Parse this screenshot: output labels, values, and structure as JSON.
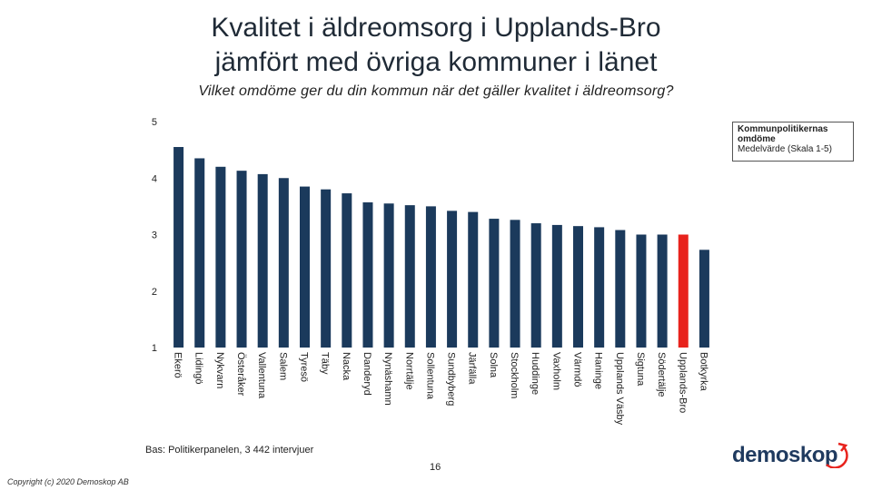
{
  "title": {
    "line1": "Kvalitet i äldreomsorg i Upplands-Bro",
    "line2": "jämfört med övriga kommuner i länet"
  },
  "subtitle": "Vilket omdöme ger du din kommun när det gäller kvalitet i äldreomsorg?",
  "legend": {
    "line1": "Kommunpolitikernas",
    "line2": "omdöme",
    "line3": "Medelvärde (Skala 1-5)"
  },
  "footnote": "Bas: Politikerpanelen, 3 442 intervjuer",
  "page_number": "16",
  "copyright": "Copyright (c) 2020 Demoskop AB",
  "logo_text": "demoskop",
  "colors": {
    "bar": "#1b3a5c",
    "highlight": "#e8231d",
    "logo": "#1f3a5f",
    "logo_arc": "#e8231d"
  },
  "chart_data": {
    "type": "bar",
    "ylim": [
      1,
      5
    ],
    "yticks": [
      1,
      2,
      3,
      4,
      5
    ],
    "grid": false,
    "legend_position": "top-right",
    "highlight_category": "Upplands-Bro",
    "categories": [
      "Ekerö",
      "Lidingö",
      "Nykvarn",
      "Österåker",
      "Vallentuna",
      "Salem",
      "Tyresö",
      "Täby",
      "Nacka",
      "Danderyd",
      "Nynäshamn",
      "Norrtälje",
      "Sollentuna",
      "Sundbyberg",
      "Järfälla",
      "Solna",
      "Stockholm",
      "Huddinge",
      "Vaxholm",
      "Värmdö",
      "Haninge",
      "Upplands Väsby",
      "Sigtuna",
      "Södertälje",
      "Upplands-Bro",
      "Botkyrka"
    ],
    "values": [
      4.55,
      4.35,
      4.2,
      4.13,
      4.07,
      4.0,
      3.85,
      3.8,
      3.73,
      3.57,
      3.55,
      3.52,
      3.5,
      3.42,
      3.4,
      3.28,
      3.26,
      3.2,
      3.17,
      3.15,
      3.13,
      3.08,
      3.0,
      3.0,
      3.0,
      2.73
    ]
  }
}
